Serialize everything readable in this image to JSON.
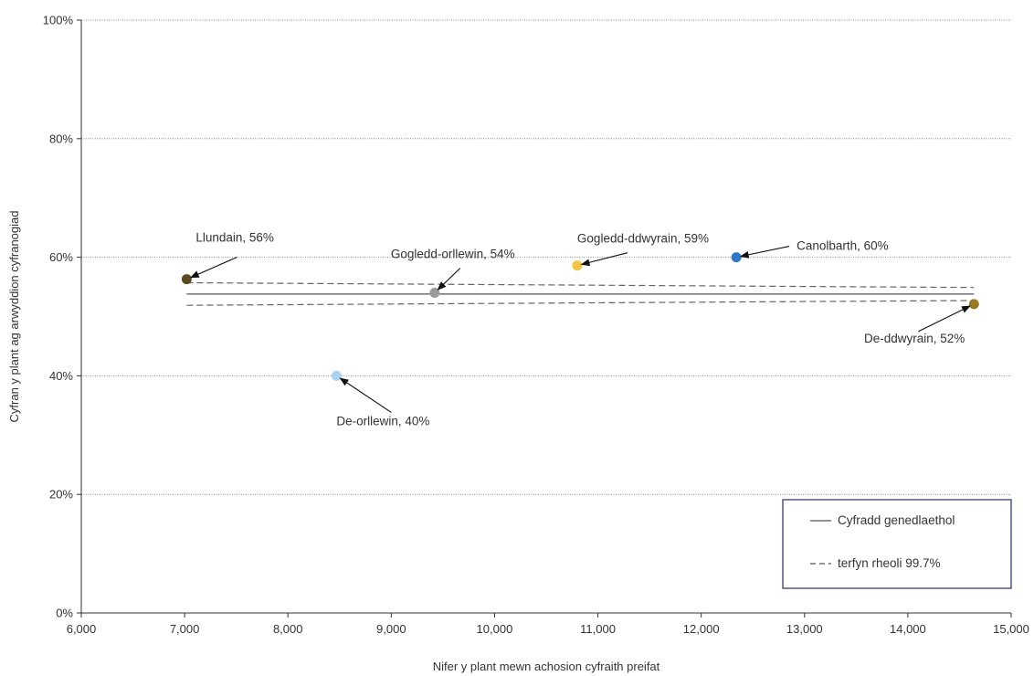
{
  "chart_data": {
    "type": "scatter",
    "title": "",
    "xlabel": "Nifer y plant mewn achosion cyfraith preifat",
    "ylabel": "Cyfran y plant ag arwyddion cyfranogiad",
    "xlim": [
      6000,
      15000
    ],
    "ylim": [
      0,
      1
    ],
    "x_ticks": [
      6000,
      7000,
      8000,
      9000,
      10000,
      11000,
      12000,
      13000,
      14000,
      15000
    ],
    "x_tick_labels": [
      "6,000",
      "7,000",
      "8,000",
      "9,000",
      "10,000",
      "11,000",
      "12,000",
      "13,000",
      "14,000",
      "15,000"
    ],
    "y_ticks": [
      0,
      0.2,
      0.4,
      0.6,
      0.8,
      1.0
    ],
    "y_tick_labels": [
      "0%",
      "20%",
      "40%",
      "60%",
      "80%",
      "100%"
    ],
    "grid": "horizontal dotted",
    "legend_position": "bottom-right",
    "points": [
      {
        "label": "Llundain, 56%",
        "x": 7020,
        "y": 0.563,
        "color": "#5c4a1e"
      },
      {
        "label": "De-orllewin, 40%",
        "x": 8470,
        "y": 0.4,
        "color": "#a9d1f0"
      },
      {
        "label": "Gogledd-orllewin, 54%",
        "x": 9420,
        "y": 0.54,
        "color": "#9a9a9a"
      },
      {
        "label": "Gogledd-ddwyrain, 59%",
        "x": 10800,
        "y": 0.586,
        "color": "#f5c242"
      },
      {
        "label": "Canolbarth, 60%",
        "x": 12340,
        "y": 0.6,
        "color": "#2f78c8"
      },
      {
        "label": "De-ddwyrain, 52%",
        "x": 14640,
        "y": 0.521,
        "color": "#9a7a24"
      }
    ],
    "lines": [
      {
        "name": "Cyfradd genedlaethol",
        "style": "solid",
        "x": [
          7020,
          14640
        ],
        "y": [
          0.538,
          0.538
        ]
      },
      {
        "name": "terfyn rheoli 99.7%",
        "style": "dashed",
        "x": [
          7020,
          14640
        ],
        "y": [
          0.557,
          0.549
        ]
      },
      {
        "name": "terfyn rheoli 99.7%",
        "style": "dashed",
        "x": [
          7020,
          14640
        ],
        "y": [
          0.519,
          0.527
        ]
      }
    ],
    "legend": [
      {
        "label": "Cyfradd genedlaethol",
        "style": "solid"
      },
      {
        "label": "terfyn rheoli 99.7%",
        "style": "dashed"
      }
    ]
  }
}
